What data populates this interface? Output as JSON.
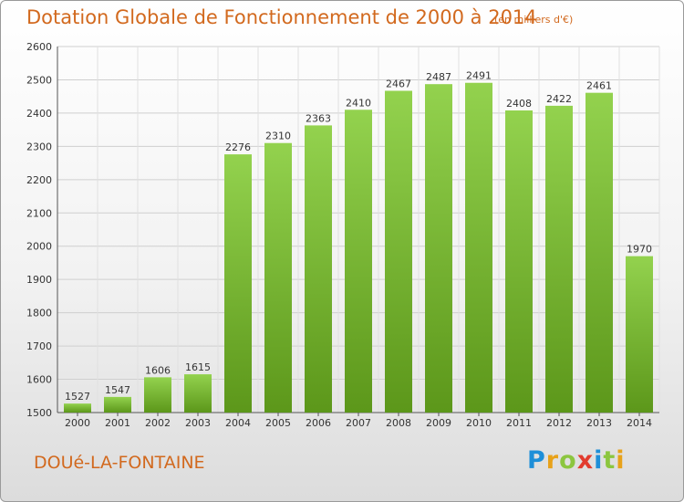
{
  "title": "Dotation Globale de Fonctionnement de 2000 à 2014",
  "unit_note": "(en milliers d'€)",
  "commune": "DOUé-LA-FONTAINE",
  "logo": "Proxiti",
  "colors": {
    "bar_top": "#8fcf4a",
    "bar_bottom": "#5f9a1c",
    "text": "#d2691e",
    "grid": "#cccccc"
  },
  "chart_data": {
    "type": "bar",
    "title": "Dotation Globale de Fonctionnement de 2000 à 2014",
    "subtitle": "(en milliers d'€)",
    "xlabel": "",
    "ylabel": "",
    "categories": [
      "2000",
      "2001",
      "2002",
      "2003",
      "2004",
      "2005",
      "2006",
      "2007",
      "2008",
      "2009",
      "2010",
      "2011",
      "2012",
      "2013",
      "2014"
    ],
    "values": [
      1527,
      1547,
      1606,
      1615,
      2276,
      2310,
      2363,
      2410,
      2467,
      2487,
      2491,
      2408,
      2422,
      2461,
      1970
    ],
    "ylim": [
      1500,
      2600
    ],
    "yticks": [
      1500,
      1600,
      1700,
      1800,
      1900,
      2000,
      2100,
      2200,
      2300,
      2400,
      2500,
      2600
    ],
    "grid": true,
    "data_labels": true
  }
}
